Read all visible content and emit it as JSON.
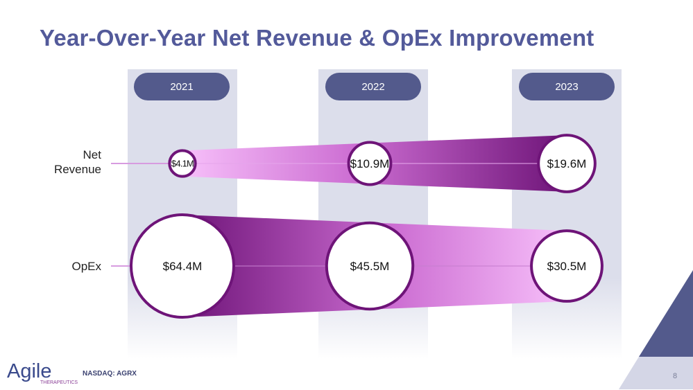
{
  "title": "Year-Over-Year Net Revenue & OpEx Improvement",
  "years": [
    "2021",
    "2022",
    "2023"
  ],
  "row_labels": {
    "revenue_line1": "Net",
    "revenue_line2": "Revenue",
    "opex": "OpEx"
  },
  "chart_data": {
    "type": "bubble",
    "title": "Year-Over-Year Net Revenue & OpEx Improvement",
    "categories": [
      "2021",
      "2022",
      "2023"
    ],
    "series": [
      {
        "name": "Net Revenue",
        "values": [
          4.1,
          10.9,
          19.6
        ],
        "labels": [
          "$4.1M",
          "$10.9M",
          "$19.6M"
        ]
      },
      {
        "name": "OpEx",
        "values": [
          64.4,
          45.5,
          30.5
        ],
        "labels": [
          "$64.4M",
          "$45.5M",
          "$30.5M"
        ]
      }
    ],
    "unit": "$M"
  },
  "colors": {
    "accent": "#535a9a",
    "pill": "#535a8c",
    "purple_dark": "#6e1478",
    "purple_light": "#f4b2f7",
    "column": "#dcdeeb"
  },
  "footer": {
    "logo_text": "Agile",
    "logo_sub": "THERAPEUTICS",
    "ticker": "NASDAQ: AGRX",
    "page": "8"
  }
}
